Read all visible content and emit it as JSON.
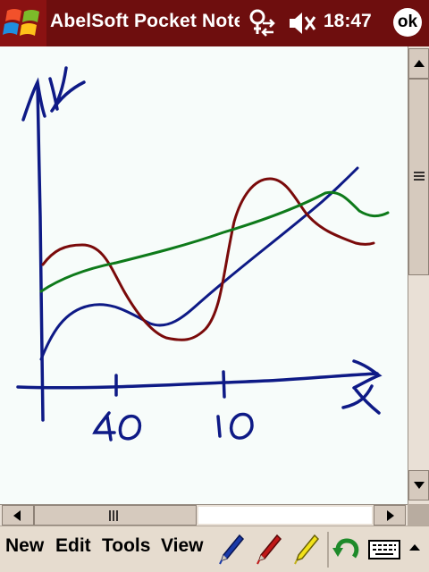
{
  "titlebar": {
    "app_title": "AbelSoft Pocket Notes",
    "clock": "18:47",
    "ok_label": "ok",
    "background": "#6e0e0e"
  },
  "menu": {
    "items": [
      "New",
      "Edit",
      "Tools",
      "View"
    ]
  },
  "toolbar": {
    "tools": [
      "blue-pen-icon",
      "red-pen-icon",
      "yellow-highlighter-icon",
      "undo-icon",
      "keyboard-icon"
    ]
  },
  "ink_colors": {
    "blue": "#0e1a86",
    "red": "#7a0a0a",
    "green": "#0e7a1a"
  },
  "canvas": {
    "background": "#f7fcfa"
  }
}
